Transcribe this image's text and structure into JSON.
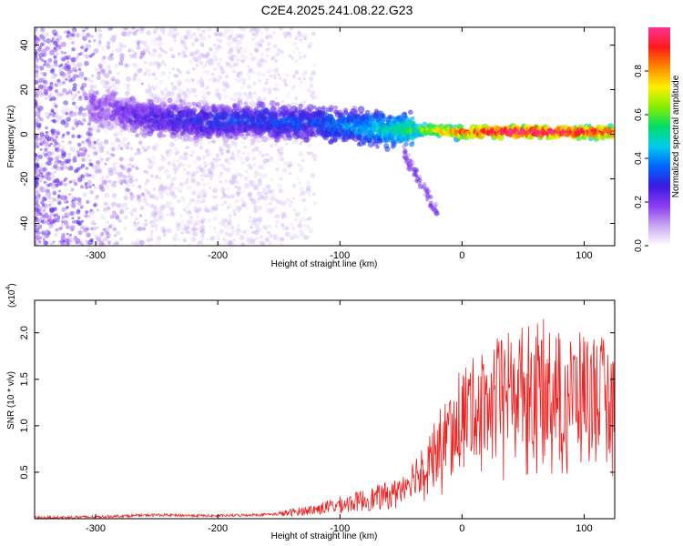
{
  "figure_title": "C2E4.2025.241.08.22.G23",
  "chart_data": [
    {
      "type": "heatmap",
      "title": "C2E4.2025.241.08.22.G23",
      "xlabel": "Height of straight line (km)",
      "ylabel": "Frequency (Hz)",
      "xlim": [
        -350,
        125
      ],
      "ylim": [
        -50,
        48
      ],
      "x_ticks": [
        -300,
        -200,
        -100,
        0,
        100
      ],
      "y_ticks": [
        -40,
        -20,
        0,
        20,
        40
      ],
      "colorbar": {
        "label": "Normalized spectral amplitude",
        "range": [
          0,
          1
        ],
        "ticks": [
          0.0,
          0.2,
          0.4,
          0.6,
          0.8
        ],
        "colormap": [
          "#ffffff",
          "#c9a8f2",
          "#8a3cf0",
          "#3a1ae0",
          "#0066ff",
          "#00ccee",
          "#00dd66",
          "#88ee00",
          "#ffee00",
          "#ff8800",
          "#ff1a1a",
          "#ff3399"
        ]
      },
      "ridge": {
        "x": [
          -300,
          -280,
          -260,
          -240,
          -220,
          -200,
          -180,
          -160,
          -140,
          -120,
          -100,
          -80,
          -60,
          -45,
          -35,
          -25,
          -10,
          0,
          25,
          50,
          75,
          100,
          125
        ],
        "frequency": [
          12,
          10,
          8,
          7,
          6,
          6,
          6,
          6,
          5,
          5,
          4,
          3,
          2,
          2,
          2,
          2,
          1,
          1,
          1,
          1,
          1,
          1,
          1
        ],
        "amplitude": [
          0.15,
          0.18,
          0.22,
          0.24,
          0.26,
          0.28,
          0.27,
          0.3,
          0.3,
          0.3,
          0.35,
          0.4,
          0.45,
          0.5,
          0.58,
          0.65,
          0.75,
          0.82,
          0.92,
          0.95,
          0.93,
          0.9,
          0.88
        ]
      }
    },
    {
      "type": "line",
      "title": "",
      "xlabel": "Height of straight line (km)",
      "ylabel": "SNR (10 * v/v)",
      "y_multiplier_label": "(x10",
      "y_multiplier_exponent": "4",
      "xlim": [
        -350,
        125
      ],
      "ylim": [
        0,
        2.35
      ],
      "x_ticks": [
        -300,
        -200,
        -100,
        0,
        100
      ],
      "y_ticks": [
        0.5,
        1.0,
        1.5,
        2.0
      ],
      "series": [
        {
          "color": "#ee2222",
          "x": [
            -350,
            -300,
            -250,
            -200,
            -150,
            -120,
            -100,
            -80,
            -60,
            -50,
            -40,
            -30,
            -20,
            -10,
            -5,
            0,
            10,
            20,
            30,
            40,
            50,
            60,
            70,
            80,
            90,
            100,
            110,
            120,
            125
          ],
          "y": [
            0.01,
            0.02,
            0.04,
            0.03,
            0.05,
            0.1,
            0.15,
            0.2,
            0.25,
            0.35,
            0.45,
            0.65,
            0.8,
            0.95,
            1.1,
            1.15,
            1.2,
            1.3,
            1.35,
            1.4,
            1.45,
            1.45,
            1.5,
            1.4,
            1.35,
            1.4,
            1.4,
            1.3,
            1.3
          ]
        }
      ]
    }
  ]
}
